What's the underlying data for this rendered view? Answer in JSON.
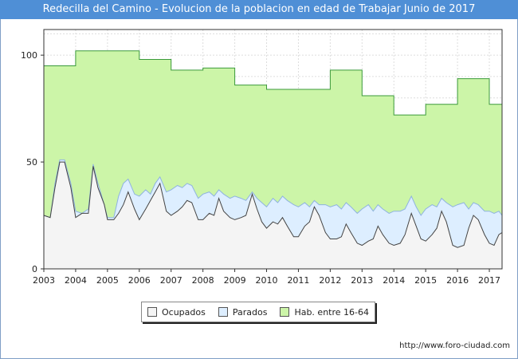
{
  "title": "Redecilla del Camino - Evolucion de la poblacion en edad de Trabajar Junio de 2017",
  "source": "http://www.foro-ciudad.com",
  "colors": {
    "ocupados_fill": "#f4f4f4",
    "ocupados_line": "#444444",
    "parados_fill": "#ddeeff",
    "parados_line": "#8fb3e0",
    "hab_fill": "#ccf5a8",
    "hab_line": "#3b9a3b"
  },
  "chart_data": {
    "type": "area",
    "xlabel": "",
    "ylabel": "",
    "xlim": [
      2003,
      2017.4
    ],
    "ylim": [
      0,
      112
    ],
    "x_ticks": [
      "2003",
      "2004",
      "2005",
      "2006",
      "2007",
      "2008",
      "2009",
      "2010",
      "2011",
      "2012",
      "2013",
      "2014",
      "2015",
      "2016",
      "2017"
    ],
    "y_ticks": [
      "0",
      "50",
      "100"
    ],
    "grid": true,
    "legend_position": "bottom",
    "series": [
      {
        "name": "Hab. entre 16-64",
        "points": [
          [
            2003.0,
            95
          ],
          [
            2004.0,
            95
          ],
          [
            2004.0,
            102
          ],
          [
            2006.0,
            102
          ],
          [
            2006.0,
            98
          ],
          [
            2007.0,
            98
          ],
          [
            2007.0,
            93
          ],
          [
            2008.0,
            93
          ],
          [
            2008.0,
            94
          ],
          [
            2009.0,
            94
          ],
          [
            2009.0,
            86
          ],
          [
            2010.0,
            86
          ],
          [
            2010.0,
            84
          ],
          [
            2012.0,
            84
          ],
          [
            2012.0,
            93
          ],
          [
            2013.0,
            93
          ],
          [
            2013.0,
            81
          ],
          [
            2014.0,
            81
          ],
          [
            2014.0,
            72
          ],
          [
            2015.0,
            72
          ],
          [
            2015.0,
            77
          ],
          [
            2016.0,
            77
          ],
          [
            2016.0,
            89
          ],
          [
            2017.0,
            89
          ],
          [
            2017.0,
            77
          ],
          [
            2017.4,
            77
          ]
        ]
      },
      {
        "name": "Parados",
        "points": [
          [
            2003.0,
            25
          ],
          [
            2003.2,
            24
          ],
          [
            2003.35,
            40
          ],
          [
            2003.5,
            51
          ],
          [
            2003.65,
            51
          ],
          [
            2003.85,
            40
          ],
          [
            2004.0,
            27
          ],
          [
            2004.2,
            26
          ],
          [
            2004.4,
            28
          ],
          [
            2004.55,
            49
          ],
          [
            2004.7,
            40
          ],
          [
            2004.9,
            30
          ],
          [
            2005.0,
            24
          ],
          [
            2005.2,
            24
          ],
          [
            2005.35,
            34
          ],
          [
            2005.5,
            40
          ],
          [
            2005.65,
            42
          ],
          [
            2005.85,
            35
          ],
          [
            2006.0,
            34
          ],
          [
            2006.2,
            37
          ],
          [
            2006.35,
            35
          ],
          [
            2006.5,
            40
          ],
          [
            2006.65,
            43
          ],
          [
            2006.85,
            36
          ],
          [
            2007.0,
            37
          ],
          [
            2007.2,
            39
          ],
          [
            2007.35,
            38
          ],
          [
            2007.5,
            40
          ],
          [
            2007.65,
            39
          ],
          [
            2007.85,
            33
          ],
          [
            2008.0,
            35
          ],
          [
            2008.2,
            36
          ],
          [
            2008.35,
            34
          ],
          [
            2008.5,
            37
          ],
          [
            2008.65,
            35
          ],
          [
            2008.85,
            33
          ],
          [
            2009.0,
            34
          ],
          [
            2009.2,
            33
          ],
          [
            2009.35,
            32
          ],
          [
            2009.55,
            36
          ],
          [
            2009.7,
            33
          ],
          [
            2009.85,
            31
          ],
          [
            2010.0,
            29
          ],
          [
            2010.2,
            33
          ],
          [
            2010.35,
            31
          ],
          [
            2010.5,
            34
          ],
          [
            2010.65,
            32
          ],
          [
            2010.85,
            30
          ],
          [
            2011.0,
            29
          ],
          [
            2011.2,
            31
          ],
          [
            2011.35,
            29
          ],
          [
            2011.5,
            32
          ],
          [
            2011.65,
            30
          ],
          [
            2011.85,
            30
          ],
          [
            2012.0,
            29
          ],
          [
            2012.2,
            30
          ],
          [
            2012.35,
            28
          ],
          [
            2012.5,
            31
          ],
          [
            2012.65,
            29
          ],
          [
            2012.85,
            26
          ],
          [
            2013.0,
            28
          ],
          [
            2013.2,
            30
          ],
          [
            2013.35,
            27
          ],
          [
            2013.5,
            30
          ],
          [
            2013.65,
            28
          ],
          [
            2013.85,
            26
          ],
          [
            2014.0,
            27
          ],
          [
            2014.2,
            27
          ],
          [
            2014.35,
            28
          ],
          [
            2014.55,
            34
          ],
          [
            2014.7,
            29
          ],
          [
            2014.85,
            25
          ],
          [
            2015.0,
            28
          ],
          [
            2015.2,
            30
          ],
          [
            2015.35,
            29
          ],
          [
            2015.5,
            33
          ],
          [
            2015.65,
            31
          ],
          [
            2015.85,
            29
          ],
          [
            2016.0,
            30
          ],
          [
            2016.2,
            31
          ],
          [
            2016.35,
            28
          ],
          [
            2016.5,
            31
          ],
          [
            2016.65,
            30
          ],
          [
            2016.85,
            27
          ],
          [
            2017.0,
            27
          ],
          [
            2017.15,
            26
          ],
          [
            2017.3,
            27
          ],
          [
            2017.4,
            25
          ]
        ]
      },
      {
        "name": "Ocupados",
        "points": [
          [
            2003.0,
            25
          ],
          [
            2003.2,
            24
          ],
          [
            2003.35,
            38
          ],
          [
            2003.5,
            50
          ],
          [
            2003.65,
            50
          ],
          [
            2003.85,
            38
          ],
          [
            2004.0,
            24
          ],
          [
            2004.2,
            26
          ],
          [
            2004.4,
            26
          ],
          [
            2004.55,
            48
          ],
          [
            2004.7,
            38
          ],
          [
            2004.9,
            30
          ],
          [
            2005.0,
            23
          ],
          [
            2005.2,
            23
          ],
          [
            2005.35,
            26
          ],
          [
            2005.5,
            30
          ],
          [
            2005.65,
            36
          ],
          [
            2005.85,
            28
          ],
          [
            2006.0,
            23
          ],
          [
            2006.2,
            28
          ],
          [
            2006.35,
            32
          ],
          [
            2006.5,
            36
          ],
          [
            2006.65,
            40
          ],
          [
            2006.85,
            27
          ],
          [
            2007.0,
            25
          ],
          [
            2007.2,
            27
          ],
          [
            2007.35,
            29
          ],
          [
            2007.5,
            32
          ],
          [
            2007.65,
            31
          ],
          [
            2007.85,
            23
          ],
          [
            2008.0,
            23
          ],
          [
            2008.2,
            26
          ],
          [
            2008.35,
            25
          ],
          [
            2008.5,
            33
          ],
          [
            2008.65,
            27
          ],
          [
            2008.85,
            24
          ],
          [
            2009.0,
            23
          ],
          [
            2009.2,
            24
          ],
          [
            2009.35,
            25
          ],
          [
            2009.55,
            35
          ],
          [
            2009.7,
            28
          ],
          [
            2009.85,
            22
          ],
          [
            2010.0,
            19
          ],
          [
            2010.2,
            22
          ],
          [
            2010.35,
            21
          ],
          [
            2010.5,
            24
          ],
          [
            2010.65,
            20
          ],
          [
            2010.85,
            15
          ],
          [
            2011.0,
            15
          ],
          [
            2011.2,
            20
          ],
          [
            2011.35,
            22
          ],
          [
            2011.5,
            29
          ],
          [
            2011.65,
            25
          ],
          [
            2011.85,
            17
          ],
          [
            2012.0,
            14
          ],
          [
            2012.2,
            14
          ],
          [
            2012.35,
            15
          ],
          [
            2012.5,
            21
          ],
          [
            2012.65,
            17
          ],
          [
            2012.85,
            12
          ],
          [
            2013.0,
            11
          ],
          [
            2013.2,
            13
          ],
          [
            2013.35,
            14
          ],
          [
            2013.5,
            20
          ],
          [
            2013.65,
            16
          ],
          [
            2013.85,
            12
          ],
          [
            2014.0,
            11
          ],
          [
            2014.2,
            12
          ],
          [
            2014.35,
            16
          ],
          [
            2014.55,
            26
          ],
          [
            2014.7,
            20
          ],
          [
            2014.85,
            14
          ],
          [
            2015.0,
            13
          ],
          [
            2015.2,
            16
          ],
          [
            2015.35,
            19
          ],
          [
            2015.5,
            27
          ],
          [
            2015.65,
            22
          ],
          [
            2015.85,
            11
          ],
          [
            2016.0,
            10
          ],
          [
            2016.2,
            11
          ],
          [
            2016.35,
            19
          ],
          [
            2016.5,
            25
          ],
          [
            2016.65,
            23
          ],
          [
            2016.85,
            16
          ],
          [
            2017.0,
            12
          ],
          [
            2017.15,
            11
          ],
          [
            2017.3,
            16
          ],
          [
            2017.4,
            17
          ]
        ]
      }
    ],
    "legend": [
      "Ocupados",
      "Parados",
      "Hab. entre 16-64"
    ]
  }
}
